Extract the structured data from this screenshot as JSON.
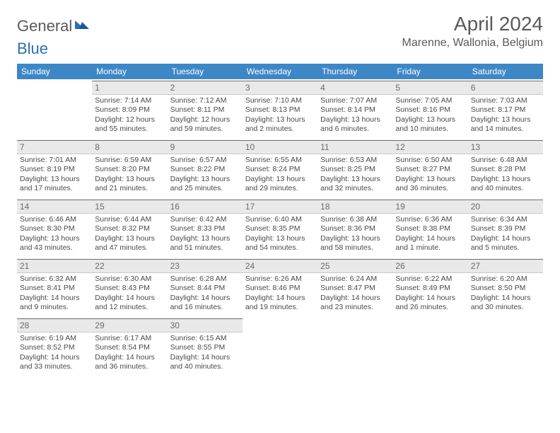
{
  "brand": {
    "word1": "General",
    "word2": "Blue"
  },
  "title": "April 2024",
  "location": "Marenne, Wallonia, Belgium",
  "colors": {
    "header_bg": "#3d87c7",
    "header_text": "#ffffff",
    "daybar_bg": "#e9e9e9",
    "daybar_border_top": "#6d6d6d",
    "body_text": "#4a4a4a",
    "brand_gray": "#5a5a5a",
    "brand_blue": "#2b6fb3",
    "title_color": "#595959"
  },
  "dow": [
    "Sunday",
    "Monday",
    "Tuesday",
    "Wednesday",
    "Thursday",
    "Friday",
    "Saturday"
  ],
  "cells": [
    {
      "blank": true
    },
    {
      "day": "1",
      "sunrise": "Sunrise: 7:14 AM",
      "sunset": "Sunset: 8:09 PM",
      "dl1": "Daylight: 12 hours",
      "dl2": "and 55 minutes."
    },
    {
      "day": "2",
      "sunrise": "Sunrise: 7:12 AM",
      "sunset": "Sunset: 8:11 PM",
      "dl1": "Daylight: 12 hours",
      "dl2": "and 59 minutes."
    },
    {
      "day": "3",
      "sunrise": "Sunrise: 7:10 AM",
      "sunset": "Sunset: 8:13 PM",
      "dl1": "Daylight: 13 hours",
      "dl2": "and 2 minutes."
    },
    {
      "day": "4",
      "sunrise": "Sunrise: 7:07 AM",
      "sunset": "Sunset: 8:14 PM",
      "dl1": "Daylight: 13 hours",
      "dl2": "and 6 minutes."
    },
    {
      "day": "5",
      "sunrise": "Sunrise: 7:05 AM",
      "sunset": "Sunset: 8:16 PM",
      "dl1": "Daylight: 13 hours",
      "dl2": "and 10 minutes."
    },
    {
      "day": "6",
      "sunrise": "Sunrise: 7:03 AM",
      "sunset": "Sunset: 8:17 PM",
      "dl1": "Daylight: 13 hours",
      "dl2": "and 14 minutes."
    },
    {
      "day": "7",
      "sunrise": "Sunrise: 7:01 AM",
      "sunset": "Sunset: 8:19 PM",
      "dl1": "Daylight: 13 hours",
      "dl2": "and 17 minutes."
    },
    {
      "day": "8",
      "sunrise": "Sunrise: 6:59 AM",
      "sunset": "Sunset: 8:20 PM",
      "dl1": "Daylight: 13 hours",
      "dl2": "and 21 minutes."
    },
    {
      "day": "9",
      "sunrise": "Sunrise: 6:57 AM",
      "sunset": "Sunset: 8:22 PM",
      "dl1": "Daylight: 13 hours",
      "dl2": "and 25 minutes."
    },
    {
      "day": "10",
      "sunrise": "Sunrise: 6:55 AM",
      "sunset": "Sunset: 8:24 PM",
      "dl1": "Daylight: 13 hours",
      "dl2": "and 29 minutes."
    },
    {
      "day": "11",
      "sunrise": "Sunrise: 6:53 AM",
      "sunset": "Sunset: 8:25 PM",
      "dl1": "Daylight: 13 hours",
      "dl2": "and 32 minutes."
    },
    {
      "day": "12",
      "sunrise": "Sunrise: 6:50 AM",
      "sunset": "Sunset: 8:27 PM",
      "dl1": "Daylight: 13 hours",
      "dl2": "and 36 minutes."
    },
    {
      "day": "13",
      "sunrise": "Sunrise: 6:48 AM",
      "sunset": "Sunset: 8:28 PM",
      "dl1": "Daylight: 13 hours",
      "dl2": "and 40 minutes."
    },
    {
      "day": "14",
      "sunrise": "Sunrise: 6:46 AM",
      "sunset": "Sunset: 8:30 PM",
      "dl1": "Daylight: 13 hours",
      "dl2": "and 43 minutes."
    },
    {
      "day": "15",
      "sunrise": "Sunrise: 6:44 AM",
      "sunset": "Sunset: 8:32 PM",
      "dl1": "Daylight: 13 hours",
      "dl2": "and 47 minutes."
    },
    {
      "day": "16",
      "sunrise": "Sunrise: 6:42 AM",
      "sunset": "Sunset: 8:33 PM",
      "dl1": "Daylight: 13 hours",
      "dl2": "and 51 minutes."
    },
    {
      "day": "17",
      "sunrise": "Sunrise: 6:40 AM",
      "sunset": "Sunset: 8:35 PM",
      "dl1": "Daylight: 13 hours",
      "dl2": "and 54 minutes."
    },
    {
      "day": "18",
      "sunrise": "Sunrise: 6:38 AM",
      "sunset": "Sunset: 8:36 PM",
      "dl1": "Daylight: 13 hours",
      "dl2": "and 58 minutes."
    },
    {
      "day": "19",
      "sunrise": "Sunrise: 6:36 AM",
      "sunset": "Sunset: 8:38 PM",
      "dl1": "Daylight: 14 hours",
      "dl2": "and 1 minute."
    },
    {
      "day": "20",
      "sunrise": "Sunrise: 6:34 AM",
      "sunset": "Sunset: 8:39 PM",
      "dl1": "Daylight: 14 hours",
      "dl2": "and 5 minutes."
    },
    {
      "day": "21",
      "sunrise": "Sunrise: 6:32 AM",
      "sunset": "Sunset: 8:41 PM",
      "dl1": "Daylight: 14 hours",
      "dl2": "and 9 minutes."
    },
    {
      "day": "22",
      "sunrise": "Sunrise: 6:30 AM",
      "sunset": "Sunset: 8:43 PM",
      "dl1": "Daylight: 14 hours",
      "dl2": "and 12 minutes."
    },
    {
      "day": "23",
      "sunrise": "Sunrise: 6:28 AM",
      "sunset": "Sunset: 8:44 PM",
      "dl1": "Daylight: 14 hours",
      "dl2": "and 16 minutes."
    },
    {
      "day": "24",
      "sunrise": "Sunrise: 6:26 AM",
      "sunset": "Sunset: 8:46 PM",
      "dl1": "Daylight: 14 hours",
      "dl2": "and 19 minutes."
    },
    {
      "day": "25",
      "sunrise": "Sunrise: 6:24 AM",
      "sunset": "Sunset: 8:47 PM",
      "dl1": "Daylight: 14 hours",
      "dl2": "and 23 minutes."
    },
    {
      "day": "26",
      "sunrise": "Sunrise: 6:22 AM",
      "sunset": "Sunset: 8:49 PM",
      "dl1": "Daylight: 14 hours",
      "dl2": "and 26 minutes."
    },
    {
      "day": "27",
      "sunrise": "Sunrise: 6:20 AM",
      "sunset": "Sunset: 8:50 PM",
      "dl1": "Daylight: 14 hours",
      "dl2": "and 30 minutes."
    },
    {
      "day": "28",
      "sunrise": "Sunrise: 6:19 AM",
      "sunset": "Sunset: 8:52 PM",
      "dl1": "Daylight: 14 hours",
      "dl2": "and 33 minutes."
    },
    {
      "day": "29",
      "sunrise": "Sunrise: 6:17 AM",
      "sunset": "Sunset: 8:54 PM",
      "dl1": "Daylight: 14 hours",
      "dl2": "and 36 minutes."
    },
    {
      "day": "30",
      "sunrise": "Sunrise: 6:15 AM",
      "sunset": "Sunset: 8:55 PM",
      "dl1": "Daylight: 14 hours",
      "dl2": "and 40 minutes."
    },
    {
      "blank": true
    },
    {
      "blank": true
    },
    {
      "blank": true
    },
    {
      "blank": true
    }
  ]
}
